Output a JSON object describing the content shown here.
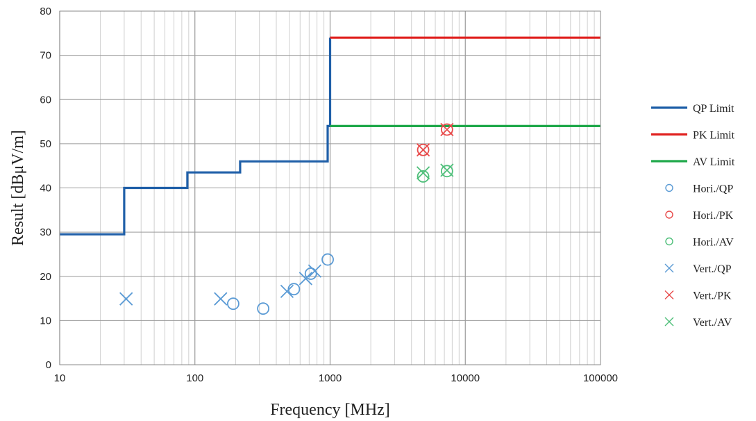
{
  "chart_data": {
    "type": "scatter",
    "title": "",
    "xlabel": "Frequency [MHz]",
    "ylabel": "Result [dBμV/m]",
    "x_scale": "log",
    "xlim": [
      10,
      100000
    ],
    "ylim": [
      0,
      80
    ],
    "grid": true,
    "legend_position": "right",
    "x_ticks": [
      "10",
      "100",
      "1000",
      "10000",
      "100000"
    ],
    "y_ticks": [
      "0",
      "10",
      "20",
      "30",
      "40",
      "50",
      "60",
      "70",
      "80"
    ],
    "limit_lines": [
      {
        "name": "QP Limit",
        "color": "#1f5fa8",
        "points": [
          [
            10,
            29.5
          ],
          [
            30,
            29.5
          ],
          [
            30,
            40
          ],
          [
            88,
            40
          ],
          [
            88,
            43.5
          ],
          [
            216,
            43.5
          ],
          [
            216,
            46
          ],
          [
            960,
            46
          ],
          [
            960,
            54
          ],
          [
            1000,
            54
          ],
          [
            1000,
            74
          ]
        ]
      },
      {
        "name": "PK Limit",
        "color": "#e0201e",
        "points": [
          [
            1000,
            74
          ],
          [
            100000,
            74
          ]
        ]
      },
      {
        "name": "AV Limit",
        "color": "#1fa84a",
        "points": [
          [
            1000,
            54
          ],
          [
            100000,
            54
          ]
        ]
      }
    ],
    "series": [
      {
        "name": "Hori./QP",
        "marker": "circle",
        "color": "#5b9bd5",
        "points": [
          [
            192,
            13.8
          ],
          [
            320,
            12.7
          ],
          [
            540,
            17.1
          ],
          [
            720,
            20.6
          ],
          [
            960,
            23.8
          ]
        ]
      },
      {
        "name": "Hori./PK",
        "marker": "circle",
        "color": "#e84a4a",
        "points": [
          [
            4880,
            48.6
          ],
          [
            7320,
            53.2
          ]
        ]
      },
      {
        "name": "Hori./AV",
        "marker": "circle",
        "color": "#4fbf7a",
        "points": [
          [
            4880,
            42.6
          ],
          [
            7320,
            43.8
          ]
        ]
      },
      {
        "name": "Vert./QP",
        "marker": "x",
        "color": "#5b9bd5",
        "points": [
          [
            31,
            14.9
          ],
          [
            155,
            14.9
          ],
          [
            480,
            16.6
          ],
          [
            660,
            19.5
          ],
          [
            770,
            21.2
          ]
        ]
      },
      {
        "name": "Vert./PK",
        "marker": "x",
        "color": "#e84a4a",
        "points": [
          [
            4880,
            48.6
          ],
          [
            7320,
            53.2
          ]
        ]
      },
      {
        "name": "Vert./AV",
        "marker": "x",
        "color": "#4fbf7a",
        "points": [
          [
            4880,
            43.4
          ],
          [
            7320,
            44.0
          ]
        ]
      }
    ]
  }
}
